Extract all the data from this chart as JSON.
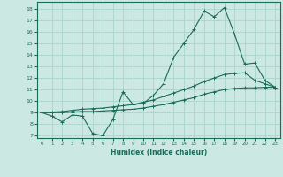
{
  "xlabel": "Humidex (Indice chaleur)",
  "ylabel": "",
  "bg_color": "#cce8e2",
  "grid_color": "#aad4cc",
  "line_color": "#1a6b5a",
  "xlim": [
    -0.5,
    23.5
  ],
  "ylim": [
    6.8,
    18.6
  ],
  "xticks": [
    0,
    1,
    2,
    3,
    4,
    5,
    6,
    7,
    8,
    9,
    10,
    11,
    12,
    13,
    14,
    15,
    16,
    17,
    18,
    19,
    20,
    21,
    22,
    23
  ],
  "yticks": [
    7,
    8,
    9,
    10,
    11,
    12,
    13,
    14,
    15,
    16,
    17,
    18
  ],
  "line1_x": [
    0,
    1,
    2,
    3,
    4,
    5,
    6,
    7,
    8,
    9,
    10,
    11,
    12,
    13,
    14,
    15,
    16,
    17,
    18,
    19,
    20,
    21,
    22,
    23
  ],
  "line1_y": [
    9.0,
    8.7,
    8.2,
    8.8,
    8.7,
    7.2,
    7.0,
    8.4,
    10.8,
    9.7,
    9.8,
    10.5,
    11.5,
    13.8,
    15.0,
    16.2,
    17.8,
    17.3,
    18.1,
    15.8,
    13.2,
    13.3,
    11.8,
    11.2
  ],
  "line2_x": [
    0,
    1,
    2,
    3,
    4,
    5,
    6,
    7,
    8,
    9,
    10,
    11,
    12,
    13,
    14,
    15,
    16,
    17,
    18,
    19,
    20,
    21,
    22,
    23
  ],
  "line2_y": [
    9.0,
    9.0,
    9.0,
    9.05,
    9.1,
    9.1,
    9.15,
    9.2,
    9.25,
    9.3,
    9.4,
    9.55,
    9.7,
    9.9,
    10.1,
    10.3,
    10.6,
    10.8,
    11.0,
    11.1,
    11.15,
    11.15,
    11.2,
    11.2
  ],
  "line3_x": [
    0,
    1,
    2,
    3,
    4,
    5,
    6,
    7,
    8,
    9,
    10,
    11,
    12,
    13,
    14,
    15,
    16,
    17,
    18,
    19,
    20,
    21,
    22,
    23
  ],
  "line3_y": [
    9.0,
    9.05,
    9.1,
    9.2,
    9.3,
    9.35,
    9.4,
    9.5,
    9.6,
    9.7,
    9.9,
    10.1,
    10.4,
    10.7,
    11.0,
    11.3,
    11.7,
    12.0,
    12.3,
    12.4,
    12.45,
    11.8,
    11.5,
    11.2
  ]
}
